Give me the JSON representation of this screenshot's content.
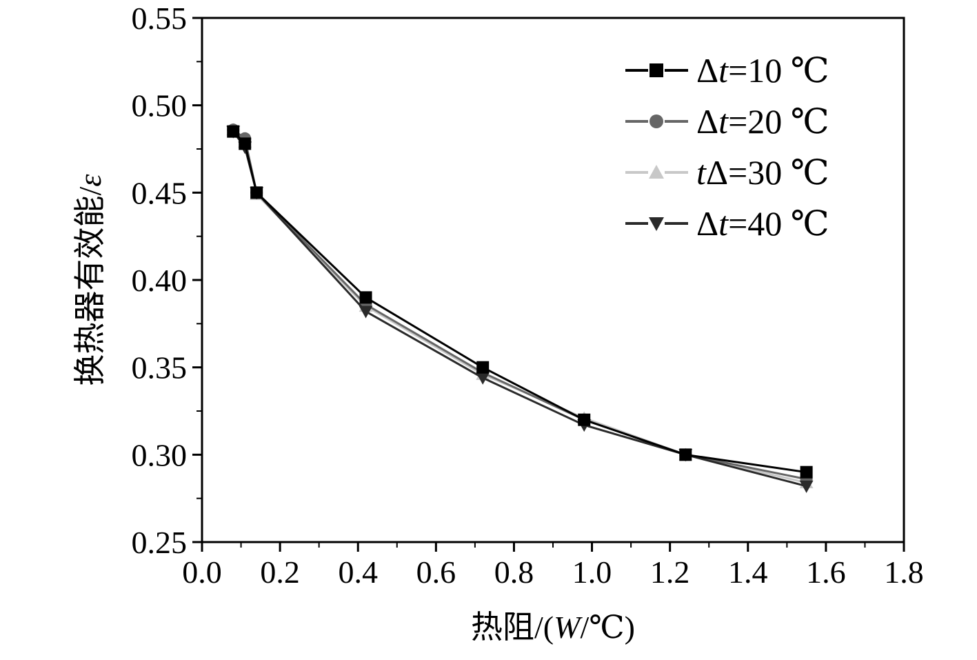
{
  "chart_data": {
    "type": "line",
    "xlabel": "热阻/(W/℃)",
    "ylabel": "换热器有效能/ε",
    "xlim": [
      0.0,
      1.8
    ],
    "ylim": [
      0.25,
      0.55
    ],
    "xticks": [
      "0.0",
      "0.2",
      "0.4",
      "0.6",
      "0.8",
      "1.0",
      "1.2",
      "1.4",
      "1.6",
      "1.8"
    ],
    "yticks": [
      "0.25",
      "0.30",
      "0.35",
      "0.40",
      "0.45",
      "0.50",
      "0.55"
    ],
    "grid": false,
    "legend_position": "top-right",
    "series": [
      {
        "name": "Δt=10 ℃",
        "marker": "square",
        "color": "#000000",
        "x": [
          0.08,
          0.11,
          0.14,
          0.42,
          0.72,
          0.98,
          1.24,
          1.55
        ],
        "y": [
          0.485,
          0.478,
          0.45,
          0.39,
          0.35,
          0.32,
          0.3,
          0.29
        ]
      },
      {
        "name": "Δt=20 ℃",
        "marker": "circle",
        "color": "#666666",
        "x": [
          0.08,
          0.11,
          0.14,
          0.42,
          0.72,
          0.98,
          1.24,
          1.55
        ],
        "y": [
          0.486,
          0.481,
          0.45,
          0.386,
          0.347,
          0.32,
          0.3,
          0.286
        ]
      },
      {
        "name": "tΔ=30 ℃",
        "marker": "triangle-up",
        "color": "#c8c8c8",
        "x": [
          0.08,
          0.11,
          0.14,
          0.42,
          0.72,
          0.98,
          1.24,
          1.55
        ],
        "y": [
          0.486,
          0.479,
          0.449,
          0.385,
          0.346,
          0.321,
          0.3,
          0.284
        ]
      },
      {
        "name": "Δt=40 ℃",
        "marker": "triangle-down",
        "color": "#2a2a2a",
        "x": [
          0.08,
          0.11,
          0.14,
          0.42,
          0.72,
          0.98,
          1.24,
          1.55
        ],
        "y": [
          0.485,
          0.476,
          0.45,
          0.382,
          0.344,
          0.317,
          0.3,
          0.282
        ]
      }
    ],
    "legend_entries": [
      {
        "prefix": "Δ",
        "var": "t",
        "rest": "=10 ℃"
      },
      {
        "prefix": "Δ",
        "var": "t",
        "rest": "=20 ℃"
      },
      {
        "prefix": "",
        "var": "t",
        "rest": "Δ=30 ℃"
      },
      {
        "prefix": "Δ",
        "var": "t",
        "rest": "=40 ℃"
      }
    ],
    "axis_titles": {
      "x": {
        "pre": "热阻/(",
        "var": "W",
        "post": "/℃)"
      },
      "y": {
        "pre": "换热器有效能/",
        "var": "ε",
        "post": ""
      }
    }
  }
}
